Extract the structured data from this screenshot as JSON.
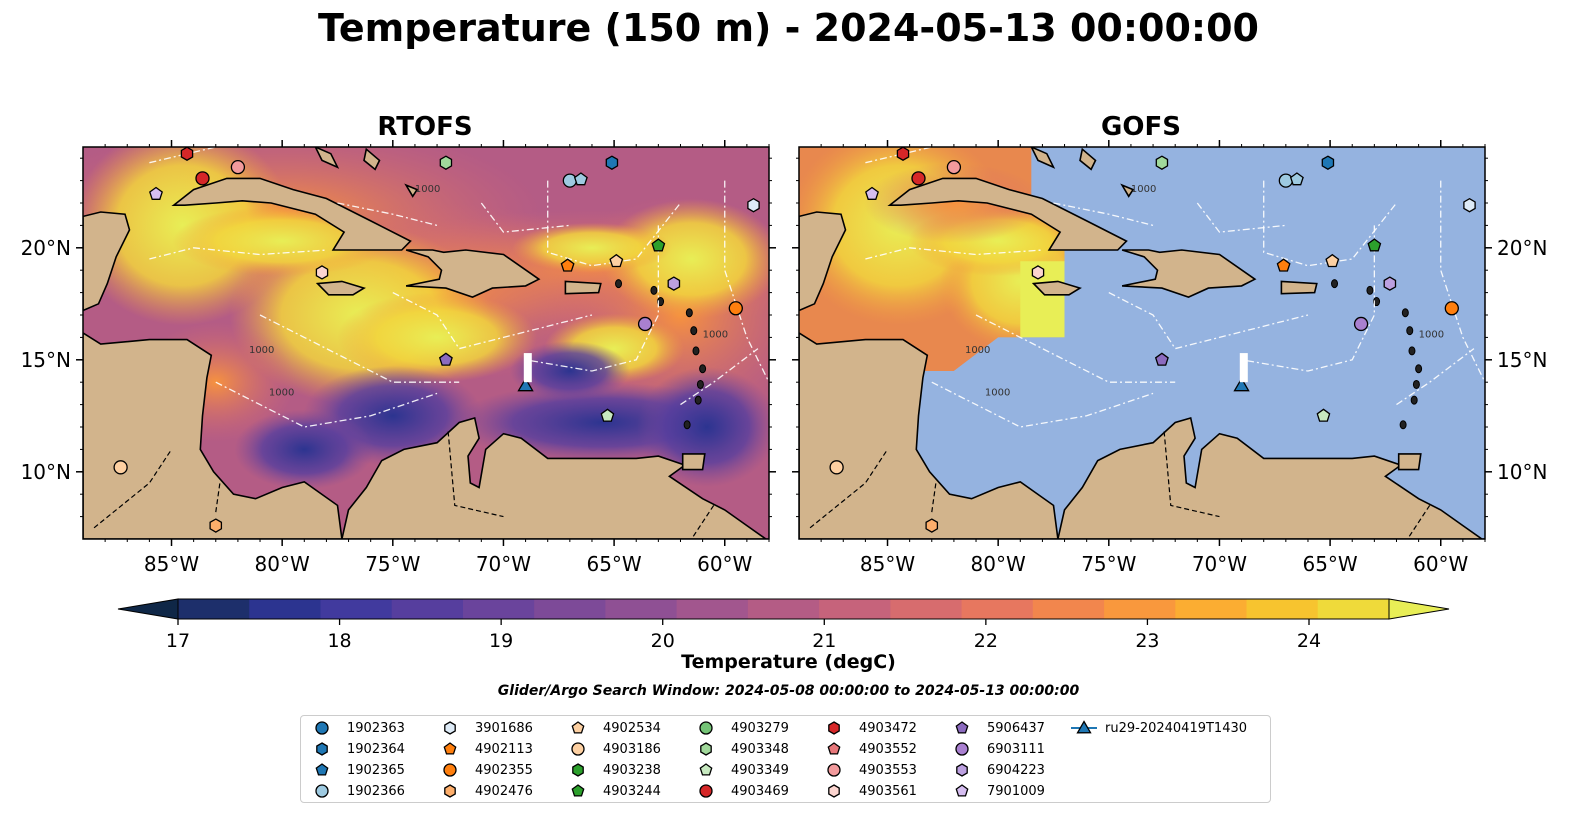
{
  "title": "Temperature (150 m) - 2024-05-13 00:00:00",
  "panels": [
    {
      "title": "RTOFS",
      "style": "full"
    },
    {
      "title": "GOFS",
      "style": "partial"
    }
  ],
  "map": {
    "lon_ticks": [
      "85°W",
      "80°W",
      "75°W",
      "70°W",
      "65°W",
      "60°W"
    ],
    "lat_ticks": [
      "20°N",
      "15°N",
      "10°N"
    ],
    "extent": {
      "lon": [
        -89,
        -58
      ],
      "lat": [
        7,
        24.5
      ]
    },
    "land_color": "#d2b48c",
    "ocean_color": "#95b3e0",
    "contour_label": "1000"
  },
  "colorbar": {
    "label": "Temperature (degC)",
    "ticks": [
      "17",
      "18",
      "19",
      "20",
      "21",
      "22",
      "23",
      "24"
    ],
    "range": [
      16.5,
      24.5
    ],
    "step": 0.5,
    "colormap": "thermal",
    "colors": [
      "#0f2747",
      "#1d2f6b",
      "#2c3490",
      "#413a9e",
      "#563e9e",
      "#6a449c",
      "#7d4a98",
      "#8f5094",
      "#a2568e",
      "#b45c85",
      "#c6637b",
      "#d76c6e",
      "#e7775f",
      "#f2864d",
      "#f9983d",
      "#fbad32",
      "#f7c42f",
      "#efda3a",
      "#e8ee56"
    ]
  },
  "search_window": "Glider/Argo Search Window: 2024-05-08 00:00:00 to 2024-05-13 00:00:00",
  "legend": [
    {
      "id": "1902363",
      "marker": "circle",
      "color": "#1f77b4"
    },
    {
      "id": "1902364",
      "marker": "hexagon",
      "color": "#1f77b4"
    },
    {
      "id": "1902365",
      "marker": "pentagon",
      "color": "#1f77b4"
    },
    {
      "id": "1902366",
      "marker": "circle",
      "color": "#9ecae1"
    },
    {
      "id": "3901686",
      "marker": "hexagon",
      "color": "#deebf7"
    },
    {
      "id": "4902113",
      "marker": "pentagon",
      "color": "#ff7f0e"
    },
    {
      "id": "4902355",
      "marker": "circle",
      "color": "#ff7f0e"
    },
    {
      "id": "4902476",
      "marker": "hexagon",
      "color": "#fdae6b"
    },
    {
      "id": "4902534",
      "marker": "pentagon",
      "color": "#fdd0a2"
    },
    {
      "id": "4903186",
      "marker": "circle",
      "color": "#fdd0a2"
    },
    {
      "id": "4903238",
      "marker": "hexagon",
      "color": "#2ca02c"
    },
    {
      "id": "4903244",
      "marker": "pentagon",
      "color": "#2ca02c"
    },
    {
      "id": "4903279",
      "marker": "circle",
      "color": "#74c476"
    },
    {
      "id": "4903348",
      "marker": "hexagon",
      "color": "#a1d99b"
    },
    {
      "id": "4903349",
      "marker": "pentagon",
      "color": "#c7e9c0"
    },
    {
      "id": "4903469",
      "marker": "circle",
      "color": "#d62728"
    },
    {
      "id": "4903472",
      "marker": "hexagon",
      "color": "#d62728"
    },
    {
      "id": "4903552",
      "marker": "pentagon",
      "color": "#e7777a"
    },
    {
      "id": "4903553",
      "marker": "circle",
      "color": "#f29a9c"
    },
    {
      "id": "4903561",
      "marker": "hexagon",
      "color": "#fcd5d0"
    },
    {
      "id": "5906437",
      "marker": "pentagon",
      "color": "#8c6bbf"
    },
    {
      "id": "6903111",
      "marker": "circle",
      "color": "#a980d0"
    },
    {
      "id": "6904223",
      "marker": "hexagon",
      "color": "#bca0e0"
    },
    {
      "id": "7901009",
      "marker": "pentagon",
      "color": "#d5bdf0"
    },
    {
      "id": "ru29-20240419T1430",
      "marker": "triangle-line",
      "color": "#1f77b4"
    }
  ],
  "stations": [
    {
      "lon": -84.3,
      "lat": 24.2,
      "marker": "hexagon",
      "color": "#d62728"
    },
    {
      "lon": -83.6,
      "lat": 23.1,
      "marker": "circle",
      "color": "#d62728"
    },
    {
      "lon": -82.0,
      "lat": 23.6,
      "marker": "circle",
      "color": "#f29a9c"
    },
    {
      "lon": -85.7,
      "lat": 22.4,
      "marker": "pentagon",
      "color": "#d5bdf0"
    },
    {
      "lon": -72.6,
      "lat": 23.8,
      "marker": "hexagon",
      "color": "#a1d99b"
    },
    {
      "lon": -67.0,
      "lat": 23.0,
      "marker": "circle",
      "color": "#9ecae1"
    },
    {
      "lon": -66.5,
      "lat": 23.05,
      "marker": "pentagon",
      "color": "#9ecae1"
    },
    {
      "lon": -65.1,
      "lat": 23.8,
      "marker": "hexagon",
      "color": "#1f77b4"
    },
    {
      "lon": -58.7,
      "lat": 21.9,
      "marker": "hexagon",
      "color": "#deebf7"
    },
    {
      "lon": -63.0,
      "lat": 20.1,
      "marker": "pentagon",
      "color": "#2ca02c"
    },
    {
      "lon": -67.1,
      "lat": 19.2,
      "marker": "pentagon",
      "color": "#ff7f0e"
    },
    {
      "lon": -64.9,
      "lat": 19.4,
      "marker": "pentagon",
      "color": "#fdd0a2"
    },
    {
      "lon": -62.3,
      "lat": 18.4,
      "marker": "hexagon",
      "color": "#bca0e0"
    },
    {
      "lon": -59.5,
      "lat": 17.3,
      "marker": "circle",
      "color": "#ff7f0e"
    },
    {
      "lon": -63.6,
      "lat": 16.6,
      "marker": "circle",
      "color": "#a980d0"
    },
    {
      "lon": -78.2,
      "lat": 18.9,
      "marker": "hexagon",
      "color": "#fcd5d0"
    },
    {
      "lon": -72.6,
      "lat": 15.0,
      "marker": "pentagon",
      "color": "#8c6bbf"
    },
    {
      "lon": -65.3,
      "lat": 12.5,
      "marker": "pentagon",
      "color": "#c7e9c0"
    },
    {
      "lon": -87.3,
      "lat": 10.2,
      "marker": "circle",
      "color": "#fdd0a2"
    },
    {
      "lon": -83.0,
      "lat": 7.6,
      "marker": "hexagon",
      "color": "#fdae6b"
    },
    {
      "lon": -69.0,
      "lat": 13.8,
      "marker": "triangle",
      "color": "#1f77b4"
    }
  ]
}
